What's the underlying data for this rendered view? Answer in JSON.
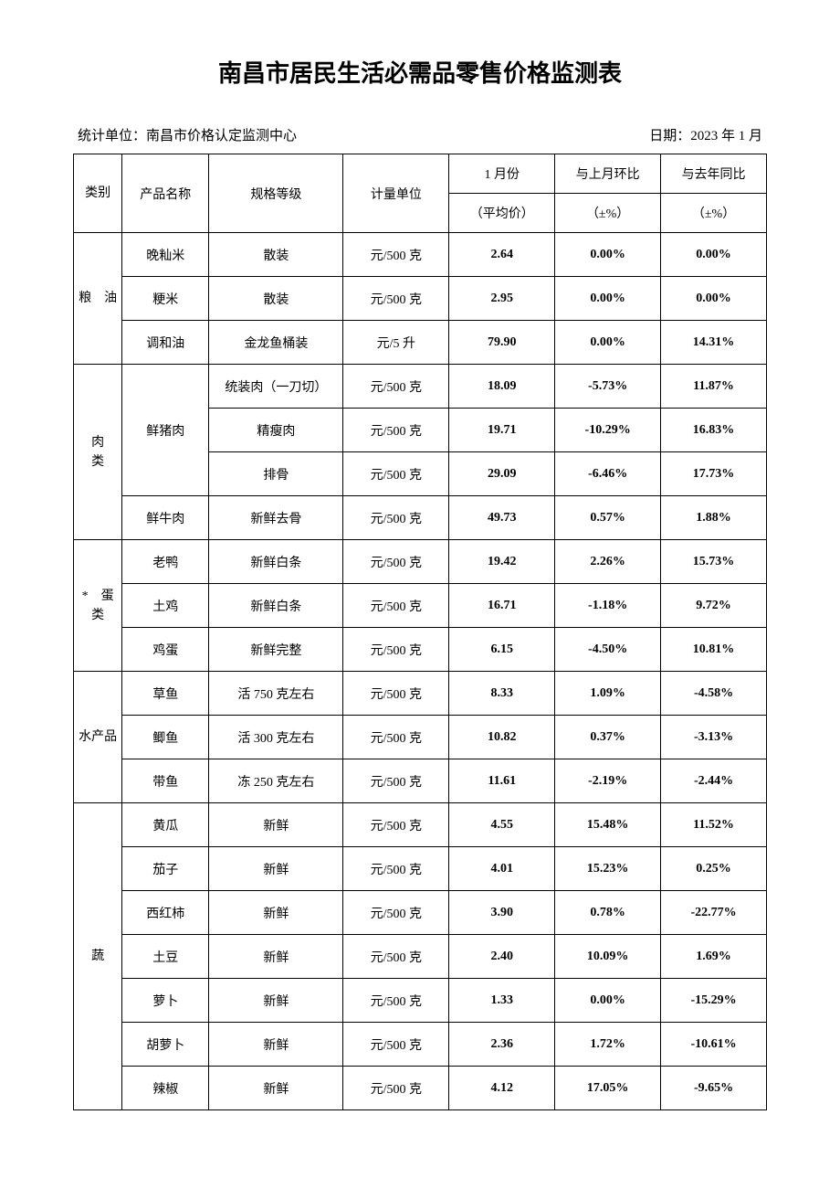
{
  "title": "南昌市居民生活必需品零售价格监测表",
  "meta": {
    "agency_label": "统计单位：",
    "agency": "南昌市价格认定监测中心",
    "date_label": "日期：",
    "date": "2023 年 1 月"
  },
  "header": {
    "category": "类别",
    "product": "产品名称",
    "spec": "规格等级",
    "unit": "计量单位",
    "month_top": "1 月份",
    "month_sub": "（平均价）",
    "mom_top": "与上月环比",
    "mom_sub": "（±%）",
    "yoy_top": "与去年同比",
    "yoy_sub": "（±%）"
  },
  "rows": [
    {
      "cat": "粮　油",
      "cat_span": 3,
      "prod": "晚籼米",
      "prod_span": 1,
      "spec": "散装",
      "unit": "元/500 克",
      "avg": "2.64",
      "mom": "0.00%",
      "yoy": "0.00%"
    },
    {
      "prod": "粳米",
      "prod_span": 1,
      "spec": "散装",
      "unit": "元/500 克",
      "avg": "2.95",
      "mom": "0.00%",
      "yoy": "0.00%"
    },
    {
      "prod": "调和油",
      "prod_span": 1,
      "spec": "金龙鱼桶装",
      "unit": "元/5 升",
      "avg": "79.90",
      "mom": "0.00%",
      "yoy": "14.31%"
    },
    {
      "cat": "肉　　类",
      "cat_span": 4,
      "prod": "鲜猪肉",
      "prod_span": 3,
      "spec": "统装肉（一刀切）",
      "unit": "元/500 克",
      "avg": "18.09",
      "mom": "-5.73%",
      "yoy": "11.87%"
    },
    {
      "spec": "精瘦肉",
      "unit": "元/500 克",
      "avg": "19.71",
      "mom": "-10.29%",
      "yoy": "16.83%"
    },
    {
      "spec": "排骨",
      "unit": "元/500 克",
      "avg": "29.09",
      "mom": "-6.46%",
      "yoy": "17.73%"
    },
    {
      "prod": "鲜牛肉",
      "prod_span": 1,
      "spec": "新鲜去骨",
      "unit": "元/500 克",
      "avg": "49.73",
      "mom": "0.57%",
      "yoy": "1.88%"
    },
    {
      "cat": "*　蛋类",
      "cat_span": 3,
      "prod": "老鸭",
      "prod_span": 1,
      "spec": "新鲜白条",
      "unit": "元/500 克",
      "avg": "19.42",
      "mom": "2.26%",
      "yoy": "15.73%"
    },
    {
      "prod": "土鸡",
      "prod_span": 1,
      "spec": "新鲜白条",
      "unit": "元/500 克",
      "avg": "16.71",
      "mom": "-1.18%",
      "yoy": "9.72%"
    },
    {
      "prod": "鸡蛋",
      "prod_span": 1,
      "spec": "新鲜完整",
      "unit": "元/500 克",
      "avg": "6.15",
      "mom": "-4.50%",
      "yoy": "10.81%"
    },
    {
      "cat": "水产品",
      "cat_span": 3,
      "prod": "草鱼",
      "prod_span": 1,
      "spec": "活 750 克左右",
      "unit": "元/500 克",
      "avg": "8.33",
      "mom": "1.09%",
      "yoy": "-4.58%"
    },
    {
      "prod": "鲫鱼",
      "prod_span": 1,
      "spec": "活 300 克左右",
      "unit": "元/500 克",
      "avg": "10.82",
      "mom": "0.37%",
      "yoy": "-3.13%"
    },
    {
      "prod": "带鱼",
      "prod_span": 1,
      "spec": "冻 250 克左右",
      "unit": "元/500 克",
      "avg": "11.61",
      "mom": "-2.19%",
      "yoy": "-2.44%"
    },
    {
      "cat": "蔬",
      "cat_span": 7,
      "prod": "黄瓜",
      "prod_span": 1,
      "spec": "新鲜",
      "unit": "元/500 克",
      "avg": "4.55",
      "mom": "15.48%",
      "yoy": "11.52%"
    },
    {
      "prod": "茄子",
      "prod_span": 1,
      "spec": "新鲜",
      "unit": "元/500 克",
      "avg": "4.01",
      "mom": "15.23%",
      "yoy": "0.25%"
    },
    {
      "prod": "西红柿",
      "prod_span": 1,
      "spec": "新鲜",
      "unit": "元/500 克",
      "avg": "3.90",
      "mom": "0.78%",
      "yoy": "-22.77%"
    },
    {
      "prod": "土豆",
      "prod_span": 1,
      "spec": "新鲜",
      "unit": "元/500 克",
      "avg": "2.40",
      "mom": "10.09%",
      "yoy": "1.69%"
    },
    {
      "prod": "萝卜",
      "prod_span": 1,
      "spec": "新鲜",
      "unit": "元/500 克",
      "avg": "1.33",
      "mom": "0.00%",
      "yoy": "-15.29%"
    },
    {
      "prod": "胡萝卜",
      "prod_span": 1,
      "spec": "新鲜",
      "unit": "元/500 克",
      "avg": "2.36",
      "mom": "1.72%",
      "yoy": "-10.61%"
    },
    {
      "prod": "辣椒",
      "prod_span": 1,
      "spec": "新鲜",
      "unit": "元/500 克",
      "avg": "4.12",
      "mom": "17.05%",
      "yoy": "-9.65%"
    }
  ]
}
